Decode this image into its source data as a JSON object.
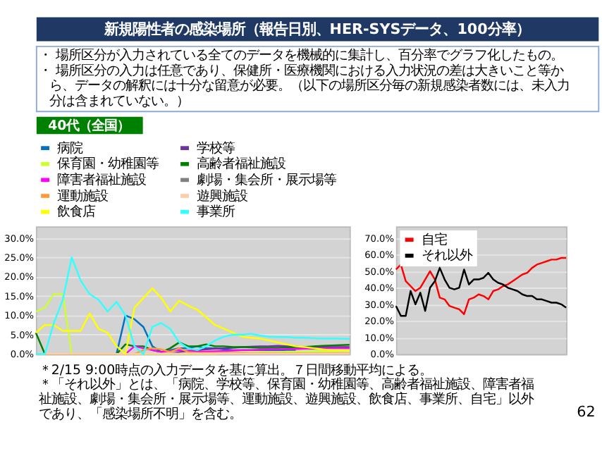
{
  "chart_data": [
    {
      "type": "line",
      "title": "新規陽性者の感染場所（報告日別、HER-SYSデータ、100分率）",
      "annotations": [
        "・ 場所区分が入力されている全てのデータを機械的に集計し、百分率でグラフ化したもの。",
        "・ 場所区分の入力は任意であり、保健所・医療機関における入力状況の差は大きいこと等から、データの解釈には十分な留意が必要。（以下の場所区分毎の新規感染者数には、未入力分は含まれていない。）",
        "40代（全国）",
        "＊2/15 9:00時点の入力データを基に算出。７日間移動平均による。",
        "＊「それ以外」とは、「病院、学校等、保育園・幼稚園等、高齢者福祉施設、障害者福祉施設、劇場・集会所・展示場等、運動施設、遊興施設、飲食店、事業所、自宅」以外であり、「感染場所不明」を含む。",
        "62"
      ],
      "categories": [
        null,
        null,
        null,
        null,
        null,
        null,
        null,
        null,
        null,
        null,
        null,
        null,
        null,
        null,
        null,
        null,
        null,
        null,
        null,
        null,
        null,
        null,
        null,
        null,
        null,
        null,
        null,
        null,
        null,
        null,
        null,
        null,
        null,
        null,
        null,
        null
      ],
      "series": [
        {
          "name": "病院",
          "color": "#0070c0",
          "values": [
            null,
            null,
            null,
            null,
            null,
            null,
            null,
            null,
            null,
            0,
            10,
            9,
            7,
            2,
            0.5,
            1,
            1.5,
            1.5,
            2,
            1.5,
            1.5,
            1.2,
            1,
            1,
            1,
            1,
            1,
            1,
            1,
            1,
            null,
            null,
            null,
            null,
            null,
            null
          ]
        },
        {
          "name": "学校等",
          "color": "#7030a0",
          "values": [
            null,
            null,
            null,
            null,
            null,
            null,
            null,
            null,
            null,
            null,
            null,
            null,
            null,
            null,
            null,
            0,
            0.5,
            0.8,
            1,
            1.2,
            1.4,
            1.5,
            1.6,
            1.8,
            1.9,
            2,
            2,
            2.1,
            2,
            1.9,
            1.8,
            1.8,
            1.8,
            1.8,
            1.8,
            1.8
          ]
        },
        {
          "name": "保育園・幼稚園等",
          "color": "#ccff33",
          "values": [
            11,
            12,
            15.5,
            15.5,
            0,
            0,
            0,
            0,
            0,
            0,
            0,
            0,
            0,
            0,
            0,
            0,
            0,
            0,
            0,
            0,
            0,
            0.3,
            0.3,
            0.4,
            0.4,
            0.5,
            0.5,
            0.5,
            0.6,
            0.6,
            0.6,
            0.7,
            0.7,
            0.7,
            0.8,
            0.8
          ]
        },
        {
          "name": "高齢者福祉施設",
          "color": "#008000",
          "values": [
            5.5,
            0,
            0,
            0,
            0,
            0,
            0,
            0,
            0,
            0,
            2.5,
            2,
            2,
            1,
            0.5,
            1.5,
            3,
            2,
            2,
            2.5,
            2,
            2,
            1.8,
            1.8,
            1.7,
            1.6,
            1.6,
            1.6,
            1.7,
            1.8,
            1.8,
            2,
            2.1,
            2.2,
            2.3,
            2.4
          ]
        },
        {
          "name": "障害者福祉施設",
          "color": "#ff00ff",
          "values": [
            null,
            null,
            null,
            null,
            null,
            null,
            null,
            null,
            null,
            null,
            0,
            2,
            1.5,
            1,
            0.5,
            0.8,
            1,
            0.8,
            0.6,
            0.6,
            0.7,
            0.8,
            0.9,
            1,
            1,
            1.1,
            1.2,
            1.2,
            1.3,
            1.3,
            1.4,
            1.4,
            1.5,
            1.5,
            1.5,
            1.5
          ]
        },
        {
          "name": "劇場・集会所・展示場等",
          "color": "#808080",
          "values": [
            null,
            null,
            null,
            null,
            null,
            null,
            null,
            null,
            null,
            null,
            null,
            null,
            null,
            null,
            null,
            null,
            null,
            null,
            null,
            null,
            null,
            null,
            null,
            null,
            null,
            null,
            null,
            null,
            null,
            null,
            null,
            null,
            null,
            null,
            null,
            null
          ]
        },
        {
          "name": "運動施設",
          "color": "#ff9933",
          "values": [
            0,
            0,
            0,
            0,
            0,
            0,
            0,
            0,
            0,
            0,
            0,
            0,
            1,
            1.5,
            1.2,
            0.5,
            1.5,
            0.5,
            0.3,
            0.3,
            0.3,
            0.3,
            0.3,
            0.3,
            0.2,
            0.2,
            0.2,
            0.2,
            0.2,
            0.2,
            0.2,
            0.2,
            0.2,
            0.2,
            0.2,
            0.2
          ]
        },
        {
          "name": "遊興施設",
          "color": "#ffccaa",
          "values": [
            0,
            0,
            0,
            0,
            0,
            0,
            0,
            0,
            0,
            0,
            0,
            0,
            0.1,
            0.1,
            0.1,
            0.1,
            0.1,
            0.1,
            0.1,
            0.1,
            0.1,
            0.1,
            0.1,
            0.1,
            0.1,
            0.1,
            0.1,
            0.1,
            0.1,
            0.1,
            0.1,
            0.1,
            0.1,
            0.1,
            0.1,
            0.1
          ]
        },
        {
          "name": "飲食店",
          "color": "#ffff00",
          "values": [
            5.5,
            7.5,
            7.5,
            6,
            6,
            6,
            10.5,
            6.5,
            5.5,
            2,
            0,
            12,
            14.5,
            17,
            14.5,
            11,
            13.8,
            12.5,
            11.5,
            9.5,
            7.5,
            6.5,
            5.5,
            4.5,
            4.2,
            4,
            3.5,
            3,
            2.5,
            2,
            1.8,
            1.5,
            1.2,
            1,
            1,
            0.9
          ]
        },
        {
          "name": "事業所",
          "color": "#33ffff",
          "values": [
            0,
            0,
            8,
            14,
            25,
            19,
            15.5,
            14,
            11,
            13.5,
            10,
            2,
            0,
            7,
            8,
            6.5,
            3,
            1.5,
            1,
            2,
            3.5,
            4.5,
            5,
            5,
            5.2,
            4.8,
            4.5,
            4.4,
            4.4,
            4.2,
            4.2,
            4.1,
            4,
            4,
            4,
            3.9
          ]
        }
      ],
      "ylim": [
        0,
        33
      ],
      "yticks": [
        {
          "value": 0,
          "label": "0.0%"
        },
        {
          "value": 5,
          "label": "5.0%"
        },
        {
          "value": 10,
          "label": "10.0%"
        },
        {
          "value": 15,
          "label": "15.0%"
        },
        {
          "value": 20,
          "label": "20.0%"
        },
        {
          "value": 25,
          "label": "25.0%"
        },
        {
          "value": 30,
          "label": "30.0%"
        }
      ],
      "grid": "y",
      "legend": "top",
      "tick_labels": "y"
    },
    {
      "type": "line",
      "categories": [
        null,
        null,
        null,
        null,
        null,
        null,
        null,
        null,
        null,
        null,
        null,
        null,
        null,
        null,
        null,
        null,
        null,
        null,
        null,
        null,
        null,
        null,
        null,
        null,
        null,
        null,
        null,
        null,
        null,
        null,
        null,
        null,
        null,
        null,
        null,
        null
      ],
      "series": [
        {
          "name": "自宅",
          "color": "#ff0000",
          "values": [
            51,
            54,
            44,
            41,
            38,
            40,
            45,
            50,
            45,
            34,
            33,
            29,
            28,
            27,
            24,
            33,
            34,
            36,
            35,
            33,
            38,
            39,
            41,
            42,
            44,
            46,
            48,
            49,
            52,
            54,
            55,
            56,
            57,
            57,
            58,
            58
          ]
        },
        {
          "name": "それ以外",
          "color": "#000000",
          "values": [
            29,
            23,
            23,
            38,
            30,
            37,
            26,
            40,
            44,
            52,
            45,
            40,
            39,
            40,
            51,
            42,
            45,
            45,
            46,
            49,
            45,
            43,
            42,
            40,
            39,
            38,
            36,
            35,
            35,
            33,
            33,
            32,
            31,
            31,
            30,
            28
          ]
        }
      ],
      "ylim": [
        0,
        77
      ],
      "yticks": [
        {
          "value": 0,
          "label": "0.0%"
        },
        {
          "value": 10,
          "label": "10.0%"
        },
        {
          "value": 20,
          "label": "20.0%"
        },
        {
          "value": 30,
          "label": "30.0%"
        },
        {
          "value": 40,
          "label": "40.0%"
        },
        {
          "value": 50,
          "label": "50.0%"
        },
        {
          "value": 60,
          "label": "60.0%"
        },
        {
          "value": 70,
          "label": "70.0%"
        }
      ],
      "grid": "y",
      "legend": "top left",
      "tick_labels": "y"
    }
  ]
}
